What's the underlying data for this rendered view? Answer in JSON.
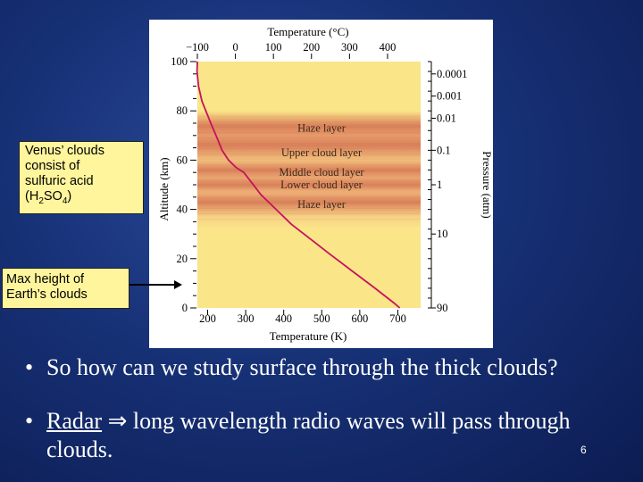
{
  "figure": {
    "top_axis_title": "Temperature (°C)",
    "top_ticks": [
      {
        "label": "−100",
        "value": -100
      },
      {
        "label": "0",
        "value": 0
      },
      {
        "label": "100",
        "value": 100
      },
      {
        "label": "200",
        "value": 200
      },
      {
        "label": "300",
        "value": 300
      },
      {
        "label": "400",
        "value": 400
      }
    ],
    "bottom_axis_title": "Temperature (K)",
    "bottom_ticks": [
      {
        "label": "200",
        "value": 200
      },
      {
        "label": "300",
        "value": 300
      },
      {
        "label": "400",
        "value": 400
      },
      {
        "label": "500",
        "value": 500
      },
      {
        "label": "600",
        "value": 600
      },
      {
        "label": "700",
        "value": 700
      }
    ],
    "left_axis_title": "Altitude (km)",
    "left_ticks": [
      {
        "label": "0",
        "value": 0
      },
      {
        "label": "20",
        "value": 20
      },
      {
        "label": "40",
        "value": 40
      },
      {
        "label": "60",
        "value": 60
      },
      {
        "label": "80",
        "value": 80
      },
      {
        "label": "100",
        "value": 100
      }
    ],
    "right_axis_title": "Pressure (atm)",
    "right_ticks": [
      {
        "label": "0.0001",
        "altitude": 95
      },
      {
        "label": "0.001",
        "altitude": 86
      },
      {
        "label": "0.01",
        "altitude": 77
      },
      {
        "label": "0.1",
        "altitude": 64
      },
      {
        "label": "1",
        "altitude": 50
      },
      {
        "label": "10",
        "altitude": 30
      },
      {
        "label": "90",
        "altitude": 0
      }
    ],
    "layers": [
      {
        "label": "Haze layer",
        "altitude": 73
      },
      {
        "label": "Upper cloud layer",
        "altitude": 63
      },
      {
        "label": "Middle cloud layer",
        "altitude": 55
      },
      {
        "label": "Lower cloud layer",
        "altitude": 50
      },
      {
        "label": "Haze layer",
        "altitude": 42
      }
    ],
    "temperature_profile_K": [
      {
        "T": 173,
        "alt": 100
      },
      {
        "T": 172,
        "alt": 96
      },
      {
        "T": 176,
        "alt": 90
      },
      {
        "T": 185,
        "alt": 84
      },
      {
        "T": 198,
        "alt": 79
      },
      {
        "T": 211,
        "alt": 74
      },
      {
        "T": 225,
        "alt": 69
      },
      {
        "T": 238,
        "alt": 64
      },
      {
        "T": 255,
        "alt": 60
      },
      {
        "T": 275,
        "alt": 57
      },
      {
        "T": 295,
        "alt": 55
      },
      {
        "T": 315,
        "alt": 51
      },
      {
        "T": 340,
        "alt": 46
      },
      {
        "T": 380,
        "alt": 40
      },
      {
        "T": 420,
        "alt": 34
      },
      {
        "T": 470,
        "alt": 28
      },
      {
        "T": 520,
        "alt": 22
      },
      {
        "T": 580,
        "alt": 15
      },
      {
        "T": 640,
        "alt": 8
      },
      {
        "T": 690,
        "alt": 2
      },
      {
        "T": 705,
        "alt": 0
      }
    ],
    "colors": {
      "background": "#fbe589",
      "band": "#d9805a",
      "curve": "#c4145c",
      "frame": "#ffffff"
    }
  },
  "callouts": {
    "clouds_lines": [
      "Venus’ clouds",
      "consist of",
      "sulfuric acid"
    ],
    "formula_open": "(H",
    "formula_sub1": "2",
    "formula_mid": "SO",
    "formula_sub2": "4",
    "formula_close": ")",
    "earth_clouds": "Max height of Earth’s clouds"
  },
  "bullets": {
    "symbol": "•",
    "first": "So how can we study surface through the thick clouds?",
    "second_link": "Radar",
    "second_symbol": "⇒",
    "second_rest": "long wavelength radio waves will pass through clouds."
  },
  "slide_number": "6"
}
